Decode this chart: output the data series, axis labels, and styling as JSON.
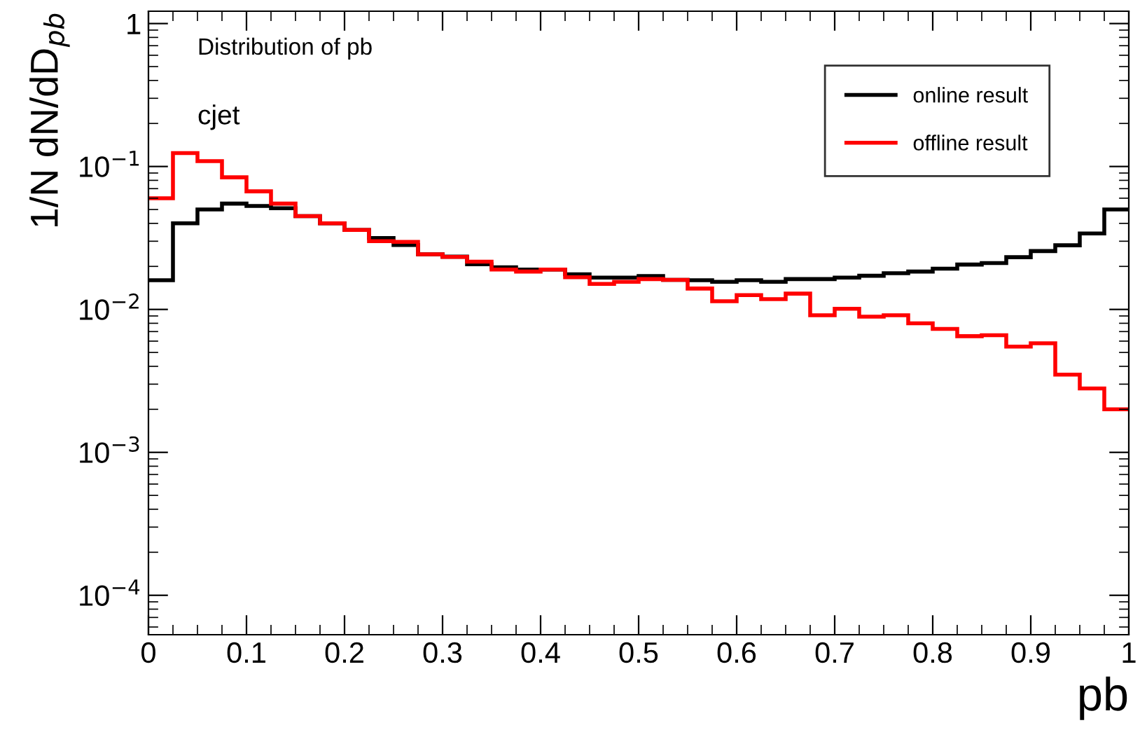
{
  "chart_data": {
    "type": "histogram",
    "xlabel": "pb",
    "ylabel": "1/N dN/dD$_{pb}$",
    "annotations": [
      "Distribution of pb",
      "cjet"
    ],
    "bins": [
      0,
      0.025,
      0.05,
      0.075,
      0.1,
      0.125,
      0.15,
      0.175,
      0.2,
      0.225,
      0.25,
      0.275,
      0.3,
      0.325,
      0.35,
      0.375,
      0.4,
      0.425,
      0.45,
      0.475,
      0.5,
      0.525,
      0.55,
      0.575,
      0.6,
      0.625,
      0.65,
      0.675,
      0.7,
      0.725,
      0.75,
      0.775,
      0.8,
      0.825,
      0.85,
      0.875,
      0.9,
      0.925,
      0.95,
      0.975,
      1
    ],
    "series": [
      {
        "name": "online result",
        "color": "#000000",
        "values": [
          0.016,
          0.04,
          0.05,
          0.055,
          0.053,
          0.051,
          0.045,
          0.04,
          0.036,
          0.0316,
          0.0282,
          0.0243,
          0.0234,
          0.0207,
          0.0197,
          0.019,
          0.019,
          0.0176,
          0.0167,
          0.0167,
          0.0171,
          0.0161,
          0.016,
          0.0156,
          0.016,
          0.0156,
          0.0163,
          0.0163,
          0.0167,
          0.0172,
          0.0179,
          0.0184,
          0.0193,
          0.0206,
          0.0211,
          0.0232,
          0.0256,
          0.0281,
          0.034,
          0.05
        ]
      },
      {
        "name": "offline result",
        "color": "#ff0000",
        "values": [
          0.06,
          0.124,
          0.109,
          0.084,
          0.067,
          0.055,
          0.045,
          0.04,
          0.036,
          0.03,
          0.0297,
          0.0243,
          0.0233,
          0.0216,
          0.019,
          0.0184,
          0.019,
          0.0168,
          0.0151,
          0.0156,
          0.0163,
          0.0161,
          0.014,
          0.0114,
          0.0126,
          0.0118,
          0.0129,
          0.0091,
          0.0101,
          0.0089,
          0.0091,
          0.008,
          0.0073,
          0.0065,
          0.0066,
          0.0055,
          0.0058,
          0.0035,
          0.0028,
          0.002
        ]
      }
    ],
    "log": "y",
    "xlim": [
      0,
      1
    ],
    "ylim": [
      5.3e-05,
      1.22
    ],
    "xticks": [
      0,
      0.1,
      0.2,
      0.3,
      0.4,
      0.5,
      0.6,
      0.7,
      0.8,
      0.9,
      1
    ],
    "yticks": [
      {
        "value": 0.0001,
        "label": "10$^{−4}$"
      },
      {
        "value": 0.001,
        "label": "10$^{−3}$"
      },
      {
        "value": 0.01,
        "label": "10$^{−2}$"
      },
      {
        "value": 0.1,
        "label": "10$^{−1}$"
      },
      1
    ],
    "legend": "top right",
    "grid": false
  }
}
